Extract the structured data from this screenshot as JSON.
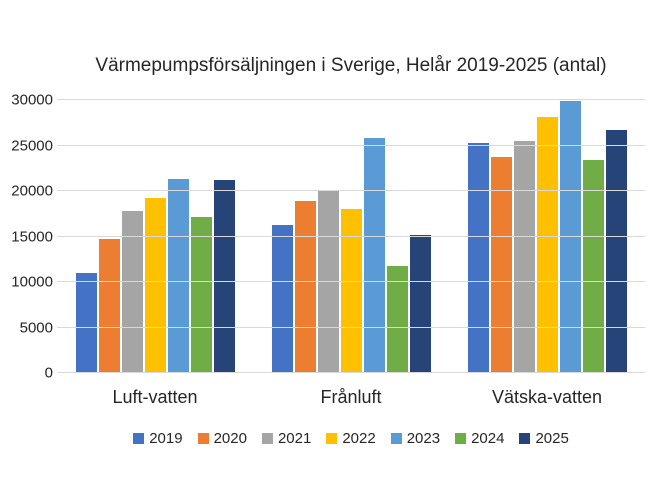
{
  "chart_data": {
    "type": "bar",
    "title": "Värmepumpsförsäljningen i Sverige, Helår 2019-2025 (antal)",
    "categories": [
      "Luft-vatten",
      "Frånluft",
      "Vätska-vatten"
    ],
    "series": [
      {
        "name": "2019",
        "color": "#4472C4",
        "values": [
          11000,
          16300,
          25300
        ]
      },
      {
        "name": "2020",
        "color": "#ED7D31",
        "values": [
          14700,
          18900,
          23700
        ]
      },
      {
        "name": "2021",
        "color": "#A5A5A5",
        "values": [
          17800,
          20100,
          25500
        ]
      },
      {
        "name": "2022",
        "color": "#FFC000",
        "values": [
          19200,
          18000,
          28100
        ]
      },
      {
        "name": "2023",
        "color": "#5B9BD5",
        "values": [
          21300,
          25800,
          29900
        ]
      },
      {
        "name": "2024",
        "color": "#70AD47",
        "values": [
          17100,
          11800,
          23400
        ]
      },
      {
        "name": "2025",
        "color": "#264478",
        "values": [
          21200,
          15200,
          26700
        ]
      }
    ],
    "xlabel": "",
    "ylabel": "",
    "ylim": [
      0,
      30000
    ],
    "ytick_step": 5000,
    "yticks": [
      "0",
      "5000",
      "10000",
      "15000",
      "20000",
      "25000",
      "30000"
    ],
    "grid": true,
    "legend_position": "bottom"
  },
  "colors": {
    "background": "#FFFFFF",
    "gridline": "#D9D9D9",
    "text": "#262626"
  }
}
